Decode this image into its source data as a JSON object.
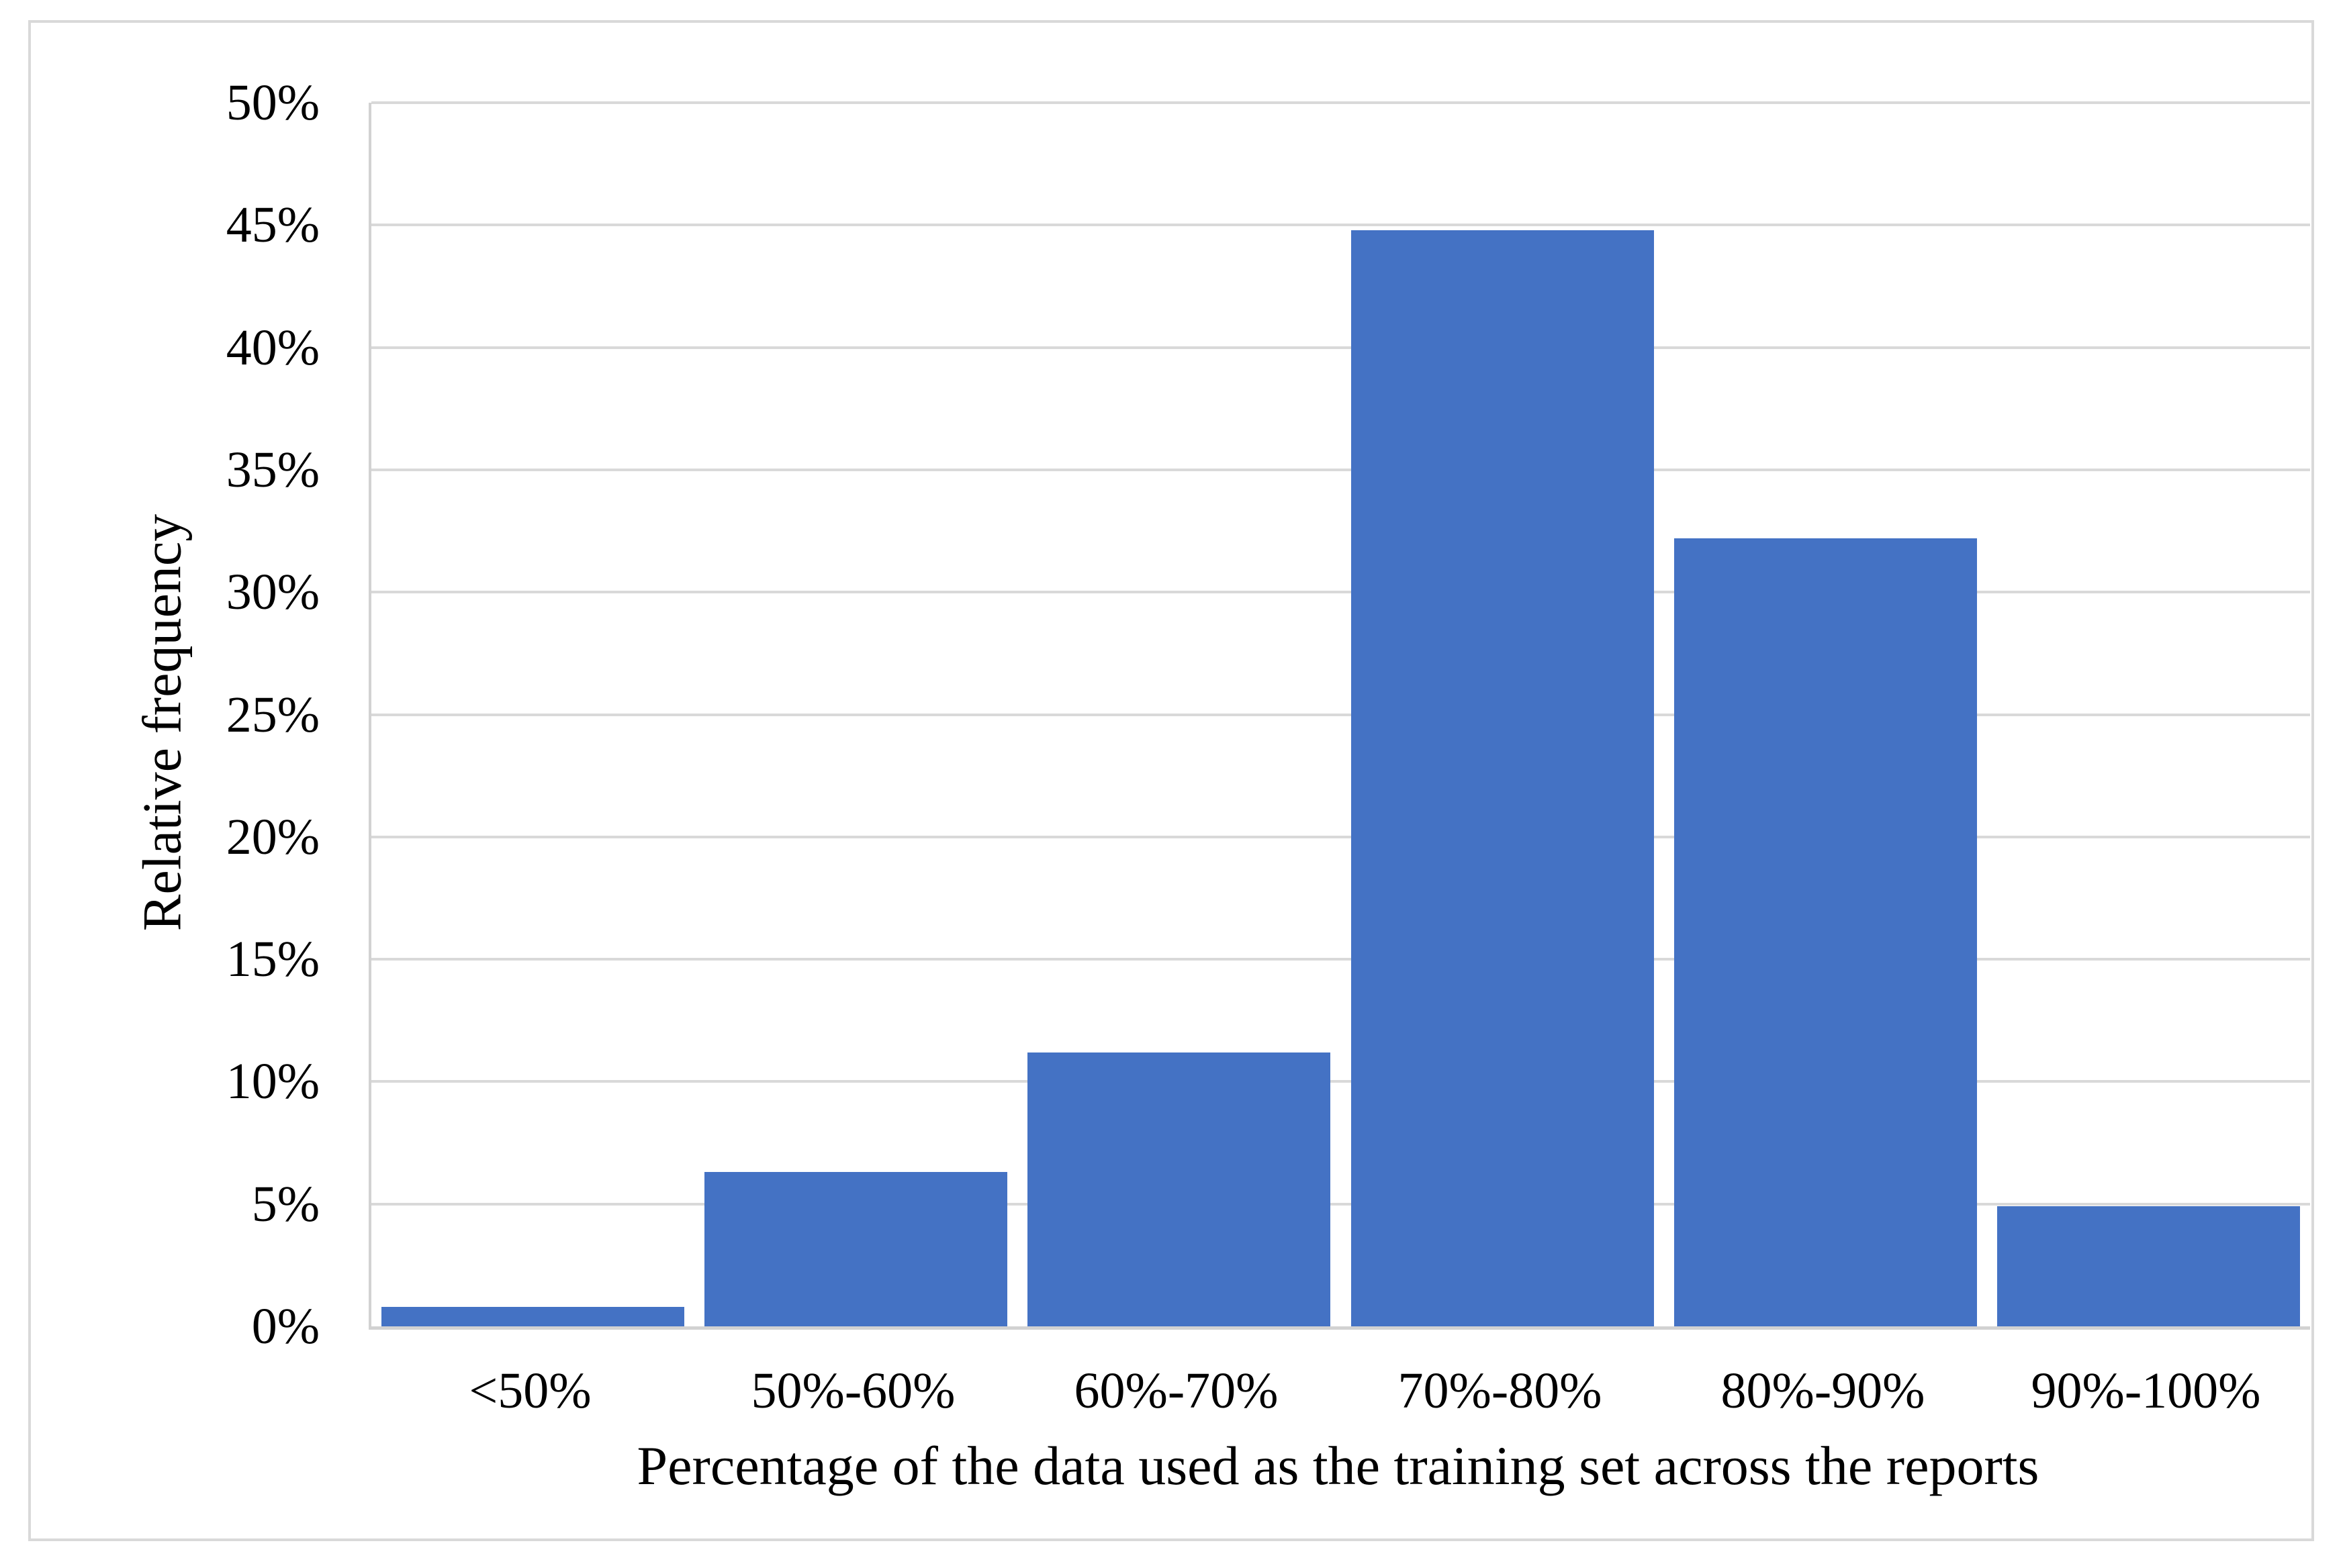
{
  "figure": {
    "background_color": "#ffffff",
    "border_color": "#d9d9d9"
  },
  "chart_data": {
    "type": "bar",
    "title": "",
    "categories": [
      "<50%",
      "50%-60%",
      "60%-70%",
      "70%-80%",
      "80%-90%",
      "90%-100%"
    ],
    "values": [
      0.8,
      6.3,
      11.2,
      44.8,
      32.2,
      4.9
    ],
    "value_unit": "percent",
    "xlabel": "Percentage of the data used as the training set across the reports",
    "ylabel": "Relative frequency",
    "ylim": [
      0,
      50
    ],
    "ytick_step": 5,
    "ytick_labels": [
      "0%",
      "5%",
      "10%",
      "15%",
      "20%",
      "25%",
      "30%",
      "35%",
      "40%",
      "45%",
      "50%"
    ],
    "grid": "horizontal",
    "legend": "none",
    "bar_color": "#4472C4",
    "gridline_color": "#d9d9d9",
    "axis_line_color": "#d2d2d2"
  }
}
